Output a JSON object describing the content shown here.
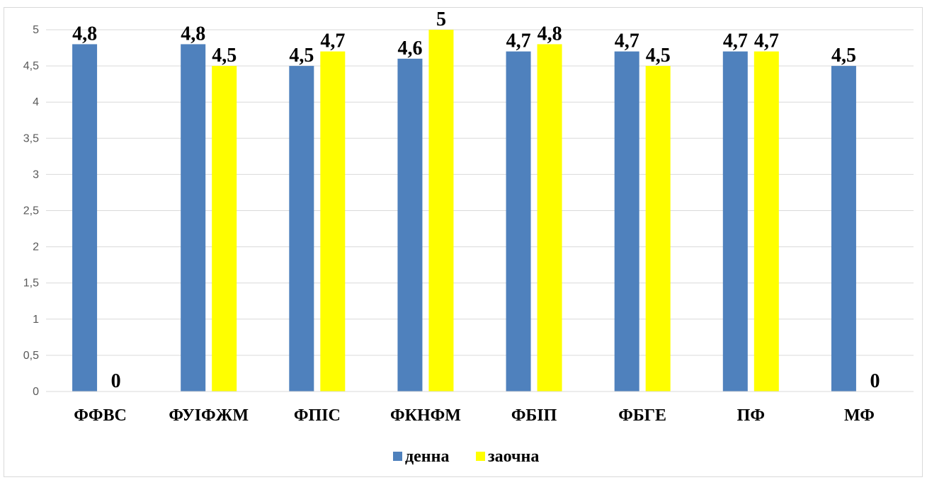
{
  "chart_data": {
    "type": "bar",
    "title": "",
    "xlabel": "",
    "ylabel": "",
    "categories": [
      "ФФВС",
      "ФУІФЖМ",
      "ФПІС",
      "ФКНФМ",
      "ФБІП",
      "ФБГЕ",
      "ПФ",
      "МФ"
    ],
    "series": [
      {
        "name": "денна",
        "color": "#4f81bd",
        "values": [
          4.8,
          4.8,
          4.5,
          4.6,
          4.7,
          4.7,
          4.7,
          4.5
        ],
        "labels": [
          "4,8",
          "4,8",
          "4,5",
          "4,6",
          "4,7",
          "4,7",
          "4,7",
          "4,5"
        ]
      },
      {
        "name": "заочна",
        "color": "#ffff00",
        "values": [
          0,
          4.5,
          4.7,
          5,
          4.8,
          4.5,
          4.7,
          0
        ],
        "labels": [
          "0",
          "4,5",
          "4,7",
          "5",
          "4,8",
          "4,5",
          "4,7",
          "0"
        ]
      }
    ],
    "ylim": [
      0,
      5
    ],
    "yticks": [
      {
        "value": 0,
        "label": "0"
      },
      {
        "value": 0.5,
        "label": "0,5"
      },
      {
        "value": 1,
        "label": "1"
      },
      {
        "value": 1.5,
        "label": "1,5"
      },
      {
        "value": 2,
        "label": "2"
      },
      {
        "value": 2.5,
        "label": "2,5"
      },
      {
        "value": 3,
        "label": "3"
      },
      {
        "value": 3.5,
        "label": "3,5"
      },
      {
        "value": 4,
        "label": "4"
      },
      {
        "value": 4.5,
        "label": "4,5"
      },
      {
        "value": 5,
        "label": "5"
      }
    ],
    "grid": true,
    "legend_position": "bottom",
    "gridline_color": "#d9d9d9"
  }
}
